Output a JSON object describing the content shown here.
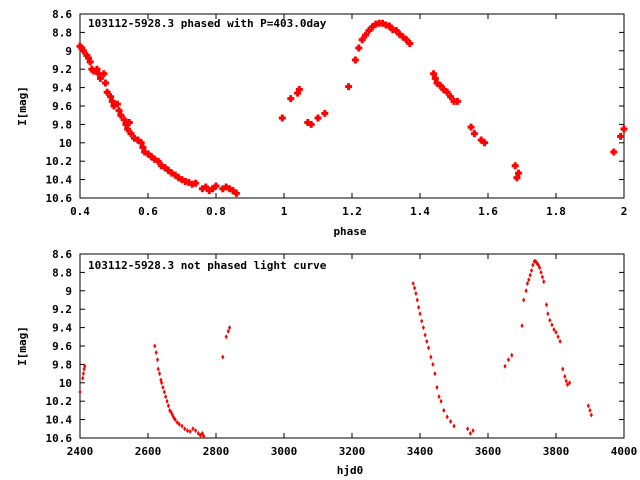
{
  "chart_data": [
    {
      "type": "scatter",
      "title": "103112-5928.3 phased with P=403.0day",
      "xlabel": "phase",
      "ylabel": "I[mag]",
      "xlim": [
        0.4,
        2.0
      ],
      "ylim": [
        10.6,
        8.6
      ],
      "y_inverted": true,
      "grid": false,
      "marker_color": "#ff0000",
      "x_ticks": [
        "0.4",
        "0.6",
        "0.8",
        "1",
        "1.2",
        "1.4",
        "1.6",
        "1.8",
        "2"
      ],
      "y_ticks": [
        "8.6",
        "8.8",
        "9",
        "9.2",
        "9.4",
        "9.6",
        "9.8",
        "10",
        "10.2",
        "10.4",
        "10.6"
      ],
      "points": [
        [
          0.4,
          8.95
        ],
        [
          0.405,
          8.97
        ],
        [
          0.41,
          9.0
        ],
        [
          0.42,
          9.05
        ],
        [
          0.425,
          9.08
        ],
        [
          0.43,
          9.12
        ],
        [
          0.435,
          9.2
        ],
        [
          0.44,
          9.22
        ],
        [
          0.45,
          9.2
        ],
        [
          0.455,
          9.25
        ],
        [
          0.46,
          9.3
        ],
        [
          0.47,
          9.25
        ],
        [
          0.475,
          9.35
        ],
        [
          0.48,
          9.45
        ],
        [
          0.49,
          9.5
        ],
        [
          0.495,
          9.55
        ],
        [
          0.5,
          9.6
        ],
        [
          0.51,
          9.58
        ],
        [
          0.515,
          9.65
        ],
        [
          0.52,
          9.7
        ],
        [
          0.53,
          9.75
        ],
        [
          0.535,
          9.8
        ],
        [
          0.54,
          9.85
        ],
        [
          0.545,
          9.78
        ],
        [
          0.55,
          9.9
        ],
        [
          0.56,
          9.95
        ],
        [
          0.57,
          9.97
        ],
        [
          0.58,
          10.0
        ],
        [
          0.585,
          10.05
        ],
        [
          0.59,
          10.1
        ],
        [
          0.6,
          10.12
        ],
        [
          0.61,
          10.15
        ],
        [
          0.62,
          10.18
        ],
        [
          0.63,
          10.2
        ],
        [
          0.64,
          10.25
        ],
        [
          0.65,
          10.27
        ],
        [
          0.66,
          10.3
        ],
        [
          0.67,
          10.33
        ],
        [
          0.68,
          10.35
        ],
        [
          0.69,
          10.38
        ],
        [
          0.7,
          10.4
        ],
        [
          0.71,
          10.42
        ],
        [
          0.72,
          10.43
        ],
        [
          0.73,
          10.45
        ],
        [
          0.74,
          10.44
        ],
        [
          0.76,
          10.5
        ],
        [
          0.77,
          10.48
        ],
        [
          0.78,
          10.52
        ],
        [
          0.79,
          10.5
        ],
        [
          0.8,
          10.47
        ],
        [
          0.82,
          10.5
        ],
        [
          0.83,
          10.48
        ],
        [
          0.84,
          10.5
        ],
        [
          0.85,
          10.52
        ],
        [
          0.86,
          10.55
        ],
        [
          0.995,
          9.73
        ],
        [
          1.02,
          9.52
        ],
        [
          1.04,
          9.46
        ],
        [
          1.045,
          9.42
        ],
        [
          1.07,
          9.78
        ],
        [
          1.08,
          9.8
        ],
        [
          1.1,
          9.73
        ],
        [
          1.12,
          9.68
        ],
        [
          1.19,
          9.39
        ],
        [
          1.21,
          9.1
        ],
        [
          1.22,
          8.97
        ],
        [
          1.23,
          8.88
        ],
        [
          1.24,
          8.83
        ],
        [
          1.25,
          8.78
        ],
        [
          1.26,
          8.74
        ],
        [
          1.27,
          8.71
        ],
        [
          1.28,
          8.7
        ],
        [
          1.29,
          8.7
        ],
        [
          1.3,
          8.72
        ],
        [
          1.31,
          8.73
        ],
        [
          1.32,
          8.77
        ],
        [
          1.33,
          8.78
        ],
        [
          1.34,
          8.82
        ],
        [
          1.35,
          8.85
        ],
        [
          1.36,
          8.88
        ],
        [
          1.37,
          8.92
        ],
        [
          1.44,
          9.25
        ],
        [
          1.445,
          9.3
        ],
        [
          1.45,
          9.35
        ],
        [
          1.46,
          9.38
        ],
        [
          1.47,
          9.42
        ],
        [
          1.48,
          9.45
        ],
        [
          1.49,
          9.5
        ],
        [
          1.5,
          9.55
        ],
        [
          1.51,
          9.55
        ],
        [
          1.55,
          9.83
        ],
        [
          1.56,
          9.9
        ],
        [
          1.58,
          9.97
        ],
        [
          1.59,
          10.0
        ],
        [
          1.68,
          10.25
        ],
        [
          1.685,
          10.38
        ],
        [
          1.69,
          10.33
        ],
        [
          1.97,
          10.1
        ],
        [
          1.99,
          9.93
        ],
        [
          2.0,
          9.85
        ]
      ]
    },
    {
      "type": "scatter",
      "title": "103112-5928.3 not phased light curve",
      "xlabel": "hjd0",
      "ylabel": "I[mag]",
      "xlim": [
        2400,
        4000
      ],
      "ylim": [
        10.6,
        8.6
      ],
      "y_inverted": true,
      "grid": false,
      "marker_color": "#ff0000",
      "x_ticks": [
        "2400",
        "2600",
        "2800",
        "3000",
        "3200",
        "3400",
        "3600",
        "3800",
        "4000"
      ],
      "y_ticks": [
        "8.6",
        "8.8",
        "9",
        "9.2",
        "9.4",
        "9.6",
        "9.8",
        "10",
        "10.2",
        "10.4",
        "10.6"
      ],
      "points": [
        [
          2400,
          10.1
        ],
        [
          2408,
          9.95
        ],
        [
          2410,
          9.9
        ],
        [
          2412,
          9.85
        ],
        [
          2414,
          9.82
        ],
        [
          2620,
          9.6
        ],
        [
          2624,
          9.67
        ],
        [
          2628,
          9.75
        ],
        [
          2630,
          9.85
        ],
        [
          2634,
          9.9
        ],
        [
          2638,
          9.97
        ],
        [
          2640,
          10.0
        ],
        [
          2644,
          10.05
        ],
        [
          2648,
          10.1
        ],
        [
          2652,
          10.15
        ],
        [
          2656,
          10.2
        ],
        [
          2660,
          10.25
        ],
        [
          2664,
          10.3
        ],
        [
          2668,
          10.32
        ],
        [
          2672,
          10.35
        ],
        [
          2676,
          10.38
        ],
        [
          2680,
          10.4
        ],
        [
          2686,
          10.43
        ],
        [
          2692,
          10.45
        ],
        [
          2700,
          10.47
        ],
        [
          2708,
          10.5
        ],
        [
          2716,
          10.52
        ],
        [
          2724,
          10.53
        ],
        [
          2732,
          10.5
        ],
        [
          2740,
          10.52
        ],
        [
          2748,
          10.55
        ],
        [
          2754,
          10.57
        ],
        [
          2760,
          10.55
        ],
        [
          2764,
          10.58
        ],
        [
          2820,
          9.72
        ],
        [
          2830,
          9.5
        ],
        [
          2836,
          9.44
        ],
        [
          2840,
          9.4
        ],
        [
          3380,
          8.92
        ],
        [
          3384,
          8.97
        ],
        [
          3388,
          9.03
        ],
        [
          3392,
          9.1
        ],
        [
          3396,
          9.18
        ],
        [
          3400,
          9.25
        ],
        [
          3405,
          9.33
        ],
        [
          3410,
          9.4
        ],
        [
          3415,
          9.48
        ],
        [
          3420,
          9.55
        ],
        [
          3425,
          9.62
        ],
        [
          3432,
          9.72
        ],
        [
          3438,
          9.8
        ],
        [
          3444,
          9.9
        ],
        [
          3450,
          10.05
        ],
        [
          3456,
          10.15
        ],
        [
          3462,
          10.2
        ],
        [
          3470,
          10.3
        ],
        [
          3480,
          10.37
        ],
        [
          3490,
          10.42
        ],
        [
          3500,
          10.47
        ],
        [
          3540,
          10.5
        ],
        [
          3548,
          10.55
        ],
        [
          3556,
          10.52
        ],
        [
          3650,
          9.82
        ],
        [
          3660,
          9.75
        ],
        [
          3670,
          9.7
        ],
        [
          3700,
          9.38
        ],
        [
          3705,
          9.1
        ],
        [
          3712,
          9.0
        ],
        [
          3716,
          8.92
        ],
        [
          3720,
          8.88
        ],
        [
          3724,
          8.83
        ],
        [
          3728,
          8.78
        ],
        [
          3732,
          8.72
        ],
        [
          3736,
          8.68
        ],
        [
          3740,
          8.68
        ],
        [
          3744,
          8.7
        ],
        [
          3748,
          8.72
        ],
        [
          3752,
          8.75
        ],
        [
          3756,
          8.8
        ],
        [
          3760,
          8.85
        ],
        [
          3764,
          8.9
        ],
        [
          3772,
          9.15
        ],
        [
          3776,
          9.25
        ],
        [
          3782,
          9.32
        ],
        [
          3788,
          9.37
        ],
        [
          3794,
          9.42
        ],
        [
          3800,
          9.45
        ],
        [
          3806,
          9.5
        ],
        [
          3812,
          9.55
        ],
        [
          3820,
          9.85
        ],
        [
          3826,
          9.93
        ],
        [
          3830,
          9.98
        ],
        [
          3834,
          10.02
        ],
        [
          3840,
          10.0
        ],
        [
          3895,
          10.25
        ],
        [
          3900,
          10.3
        ],
        [
          3904,
          10.35
        ]
      ]
    }
  ]
}
